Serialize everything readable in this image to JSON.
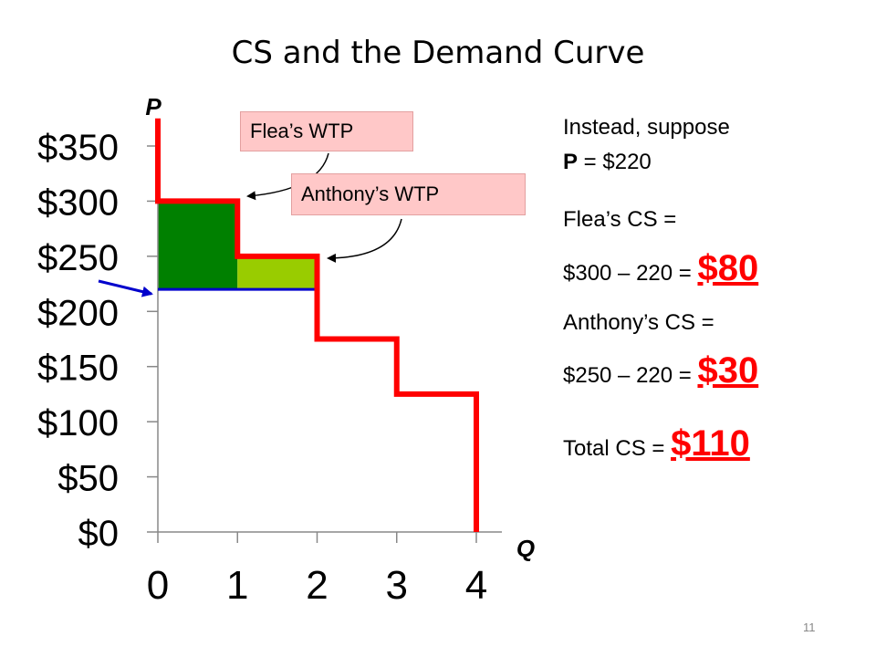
{
  "slide": {
    "title": "CS and the Demand Curve",
    "page_number": "11"
  },
  "callouts": {
    "flea": "Flea’s WTP",
    "anthony": "Anthony’s WTP"
  },
  "side": {
    "line1": "Instead, suppose",
    "line2_var": "P",
    "line2_rest": " = $220",
    "flea_cs_label": "Flea’s CS =",
    "flea_calc": "$300 – 220 = ",
    "flea_value": "$80",
    "anthony_cs_label": "Anthony’s CS =",
    "anthony_calc": "$250 – 220 = ",
    "anthony_value": "$30",
    "total_label": "Total CS = ",
    "total_value": "$110"
  },
  "colors": {
    "demand": "#ff0000",
    "price_line": "#0000cc",
    "flea_cs": "#008000",
    "anthony_cs": "#99cc00",
    "callout_bg": "#ffc8c8"
  },
  "chart_data": {
    "type": "line",
    "xlabel": "Q",
    "ylabel": "P",
    "x_ticks": [
      "0",
      "1",
      "2",
      "3",
      "4"
    ],
    "y_ticks": [
      "$0",
      "$50",
      "$100",
      "$150",
      "$200",
      "$250",
      "$300",
      "$350"
    ],
    "xlim": [
      0,
      4
    ],
    "ylim": [
      0,
      350
    ],
    "demand_steps": [
      {
        "q_from": 0,
        "q_to": 1,
        "price": 300
      },
      {
        "q_from": 1,
        "q_to": 2,
        "price": 250
      },
      {
        "q_from": 2,
        "q_to": 3,
        "price": 175
      },
      {
        "q_from": 3,
        "q_to": 4,
        "price": 125
      }
    ],
    "demand_top": 375,
    "price": 220,
    "consumer_surplus": [
      {
        "buyer": "Flea",
        "q_from": 0,
        "q_to": 1,
        "wtp": 300,
        "price": 220
      },
      {
        "buyer": "Anthony",
        "q_from": 1,
        "q_to": 2,
        "wtp": 250,
        "price": 220
      }
    ]
  }
}
